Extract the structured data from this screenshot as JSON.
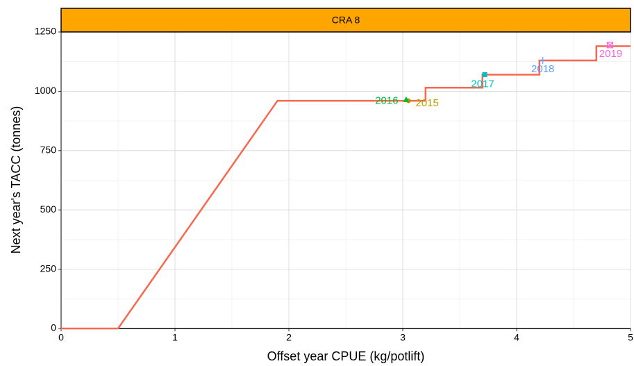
{
  "chart_data": {
    "type": "line",
    "strip_title": "CRA 8",
    "strip_color": "#ffa500",
    "x_label": "Offset year CPUE (kg/potlift)",
    "y_label": "Next year's TACC (tonnes)",
    "xlim": [
      0,
      5
    ],
    "ylim": [
      0,
      1250
    ],
    "xticks": [
      0,
      1,
      2,
      3,
      4,
      5
    ],
    "yticks": [
      0,
      250,
      500,
      750,
      1000,
      1250
    ],
    "grid": true,
    "series": [
      {
        "color": "#f8674f",
        "x": [
          0,
          0.5,
          1.9,
          3.2,
          3.2,
          3.7,
          3.7,
          4.2,
          4.2,
          4.7,
          4.7,
          5
        ],
        "values": [
          0,
          0,
          960,
          960,
          1015,
          1015,
          1070,
          1070,
          1130,
          1130,
          1190,
          1190
        ]
      }
    ],
    "points": {
      "labels": [
        "2015",
        "2016",
        "2017",
        "2018",
        "2019"
      ],
      "x": [
        3.05,
        3.03,
        3.72,
        4.23,
        4.82
      ],
      "values": [
        960,
        965,
        1070,
        1130,
        1195
      ],
      "colors": [
        "#b79f00",
        "#00ba38",
        "#00bfc4",
        "#619cff",
        "#f564e3"
      ],
      "shapes": [
        "circle",
        "triangle",
        "square",
        "plus",
        "square-cross"
      ]
    }
  }
}
